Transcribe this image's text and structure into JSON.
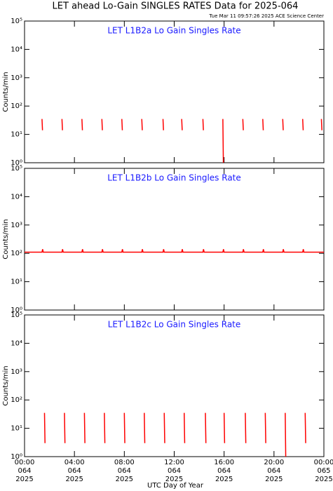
{
  "title": "LET ahead Lo-Gain SINGLES RATES Data for 2025-064",
  "subtitle": "Tue Mar 11 09:57:26 2025 ACE Science Center",
  "xlabel": "UTC Day of Year",
  "chart_data": [
    {
      "type": "line",
      "title": "LET L1B2a Lo Gain Singles Rate",
      "ylabel": "Counts/min",
      "log_y": true,
      "xlim": [
        0,
        24
      ],
      "xticks": [
        0,
        4,
        8,
        12,
        16,
        20,
        24
      ],
      "ylim": [
        1,
        100000
      ],
      "yticks": [
        {
          "value": 1,
          "label": "10⁰"
        },
        {
          "value": 10,
          "label": "10¹"
        },
        {
          "value": 100,
          "label": "10²"
        },
        {
          "value": 1000,
          "label": "10³"
        },
        {
          "value": 10000,
          "label": "10⁴"
        },
        {
          "value": 100000,
          "label": "10⁵"
        }
      ],
      "series": [
        {
          "color": "#ff0000",
          "x": [
            1.4,
            1.44,
            null,
            3.0,
            3.04,
            null,
            4.6,
            4.64,
            null,
            6.2,
            6.24,
            null,
            7.8,
            7.84,
            null,
            9.4,
            9.44,
            null,
            11.1,
            11.14,
            null,
            12.6,
            12.64,
            null,
            14.3,
            14.34,
            null,
            15.9,
            15.94,
            null,
            17.5,
            17.54,
            null,
            19.1,
            19.14,
            null,
            20.7,
            20.74,
            null,
            22.3,
            22.34,
            null,
            23.8,
            23.84
          ],
          "values": [
            35,
            14,
            null,
            35,
            14,
            null,
            35,
            14,
            null,
            35,
            14,
            null,
            35,
            14,
            null,
            35,
            14,
            null,
            35,
            14,
            null,
            35,
            14,
            null,
            35,
            14,
            null,
            35,
            1,
            null,
            35,
            14,
            null,
            35,
            14,
            null,
            35,
            14,
            null,
            35,
            14,
            null,
            35,
            14
          ]
        }
      ]
    },
    {
      "type": "line",
      "title": "LET L1B2b Lo Gain Singles Rate",
      "ylabel": "Counts/min",
      "log_y": true,
      "xlim": [
        0,
        24
      ],
      "xticks": [
        0,
        4,
        8,
        12,
        16,
        20,
        24
      ],
      "ylim": [
        1,
        100000
      ],
      "yticks": [
        {
          "value": 1,
          "label": "10⁰"
        },
        {
          "value": 10,
          "label": "10¹"
        },
        {
          "value": 100,
          "label": "10²"
        },
        {
          "value": 1000,
          "label": "10³"
        },
        {
          "value": 10000,
          "label": "10⁴"
        },
        {
          "value": 100000,
          "label": "10⁵"
        }
      ],
      "series": [
        {
          "color": "#ff0000",
          "x": [
            0,
            1.4,
            1.45,
            1.5,
            3.0,
            3.05,
            3.1,
            4.6,
            4.65,
            4.7,
            6.2,
            6.25,
            6.3,
            7.8,
            7.85,
            7.9,
            9.4,
            9.45,
            9.5,
            11.1,
            11.15,
            11.2,
            12.6,
            12.65,
            12.7,
            14.3,
            14.35,
            14.4,
            15.9,
            15.95,
            16.0,
            17.5,
            17.55,
            17.6,
            19.1,
            19.15,
            19.2,
            20.7,
            20.75,
            20.8,
            22.3,
            22.35,
            22.4,
            24
          ],
          "values": [
            110,
            110,
            140,
            110,
            110,
            140,
            110,
            110,
            140,
            110,
            110,
            140,
            110,
            110,
            140,
            110,
            110,
            140,
            110,
            110,
            140,
            110,
            110,
            140,
            110,
            110,
            140,
            110,
            110,
            140,
            110,
            110,
            140,
            110,
            110,
            140,
            110,
            110,
            140,
            110,
            110,
            140,
            110,
            110
          ]
        }
      ]
    },
    {
      "type": "line",
      "title": "LET L1B2c Lo Gain Singles Rate",
      "ylabel": "Counts/min",
      "log_y": true,
      "xlim": [
        0,
        24
      ],
      "xticks": [
        {
          "value": 0,
          "label": [
            "00:00",
            "064",
            "2025"
          ]
        },
        {
          "value": 4,
          "label": [
            "04:00",
            "064",
            "2025"
          ]
        },
        {
          "value": 8,
          "label": [
            "08:00",
            "064",
            "2025"
          ]
        },
        {
          "value": 12,
          "label": [
            "12:00",
            "064",
            "2025"
          ]
        },
        {
          "value": 16,
          "label": [
            "16:00",
            "064",
            "2025"
          ]
        },
        {
          "value": 20,
          "label": [
            "20:00",
            "064",
            "2025"
          ]
        },
        {
          "value": 24,
          "label": [
            "00:00",
            "065",
            "2025"
          ]
        }
      ],
      "ylim": [
        1,
        100000
      ],
      "yticks": [
        {
          "value": 1,
          "label": "10⁰"
        },
        {
          "value": 10,
          "label": "10¹"
        },
        {
          "value": 100,
          "label": "10²"
        },
        {
          "value": 1000,
          "label": "10³"
        },
        {
          "value": 10000,
          "label": "10⁴"
        },
        {
          "value": 100000,
          "label": "10⁵"
        }
      ],
      "series": [
        {
          "color": "#ff0000",
          "x": [
            1.6,
            1.64,
            null,
            3.2,
            3.24,
            null,
            4.8,
            4.84,
            null,
            6.4,
            6.44,
            null,
            8.0,
            8.04,
            null,
            9.6,
            9.64,
            null,
            11.2,
            11.24,
            null,
            12.8,
            12.84,
            null,
            14.5,
            14.54,
            null,
            16.0,
            16.04,
            null,
            17.7,
            17.74,
            null,
            19.3,
            19.34,
            null,
            20.9,
            20.94,
            null,
            22.5,
            22.54
          ],
          "values": [
            35,
            3,
            null,
            35,
            3,
            null,
            35,
            3,
            null,
            35,
            3,
            null,
            35,
            3,
            null,
            35,
            3,
            null,
            35,
            3,
            null,
            35,
            3,
            null,
            35,
            3,
            null,
            35,
            3,
            null,
            35,
            3,
            null,
            35,
            3,
            null,
            35,
            1,
            null,
            35,
            3
          ]
        }
      ]
    }
  ]
}
